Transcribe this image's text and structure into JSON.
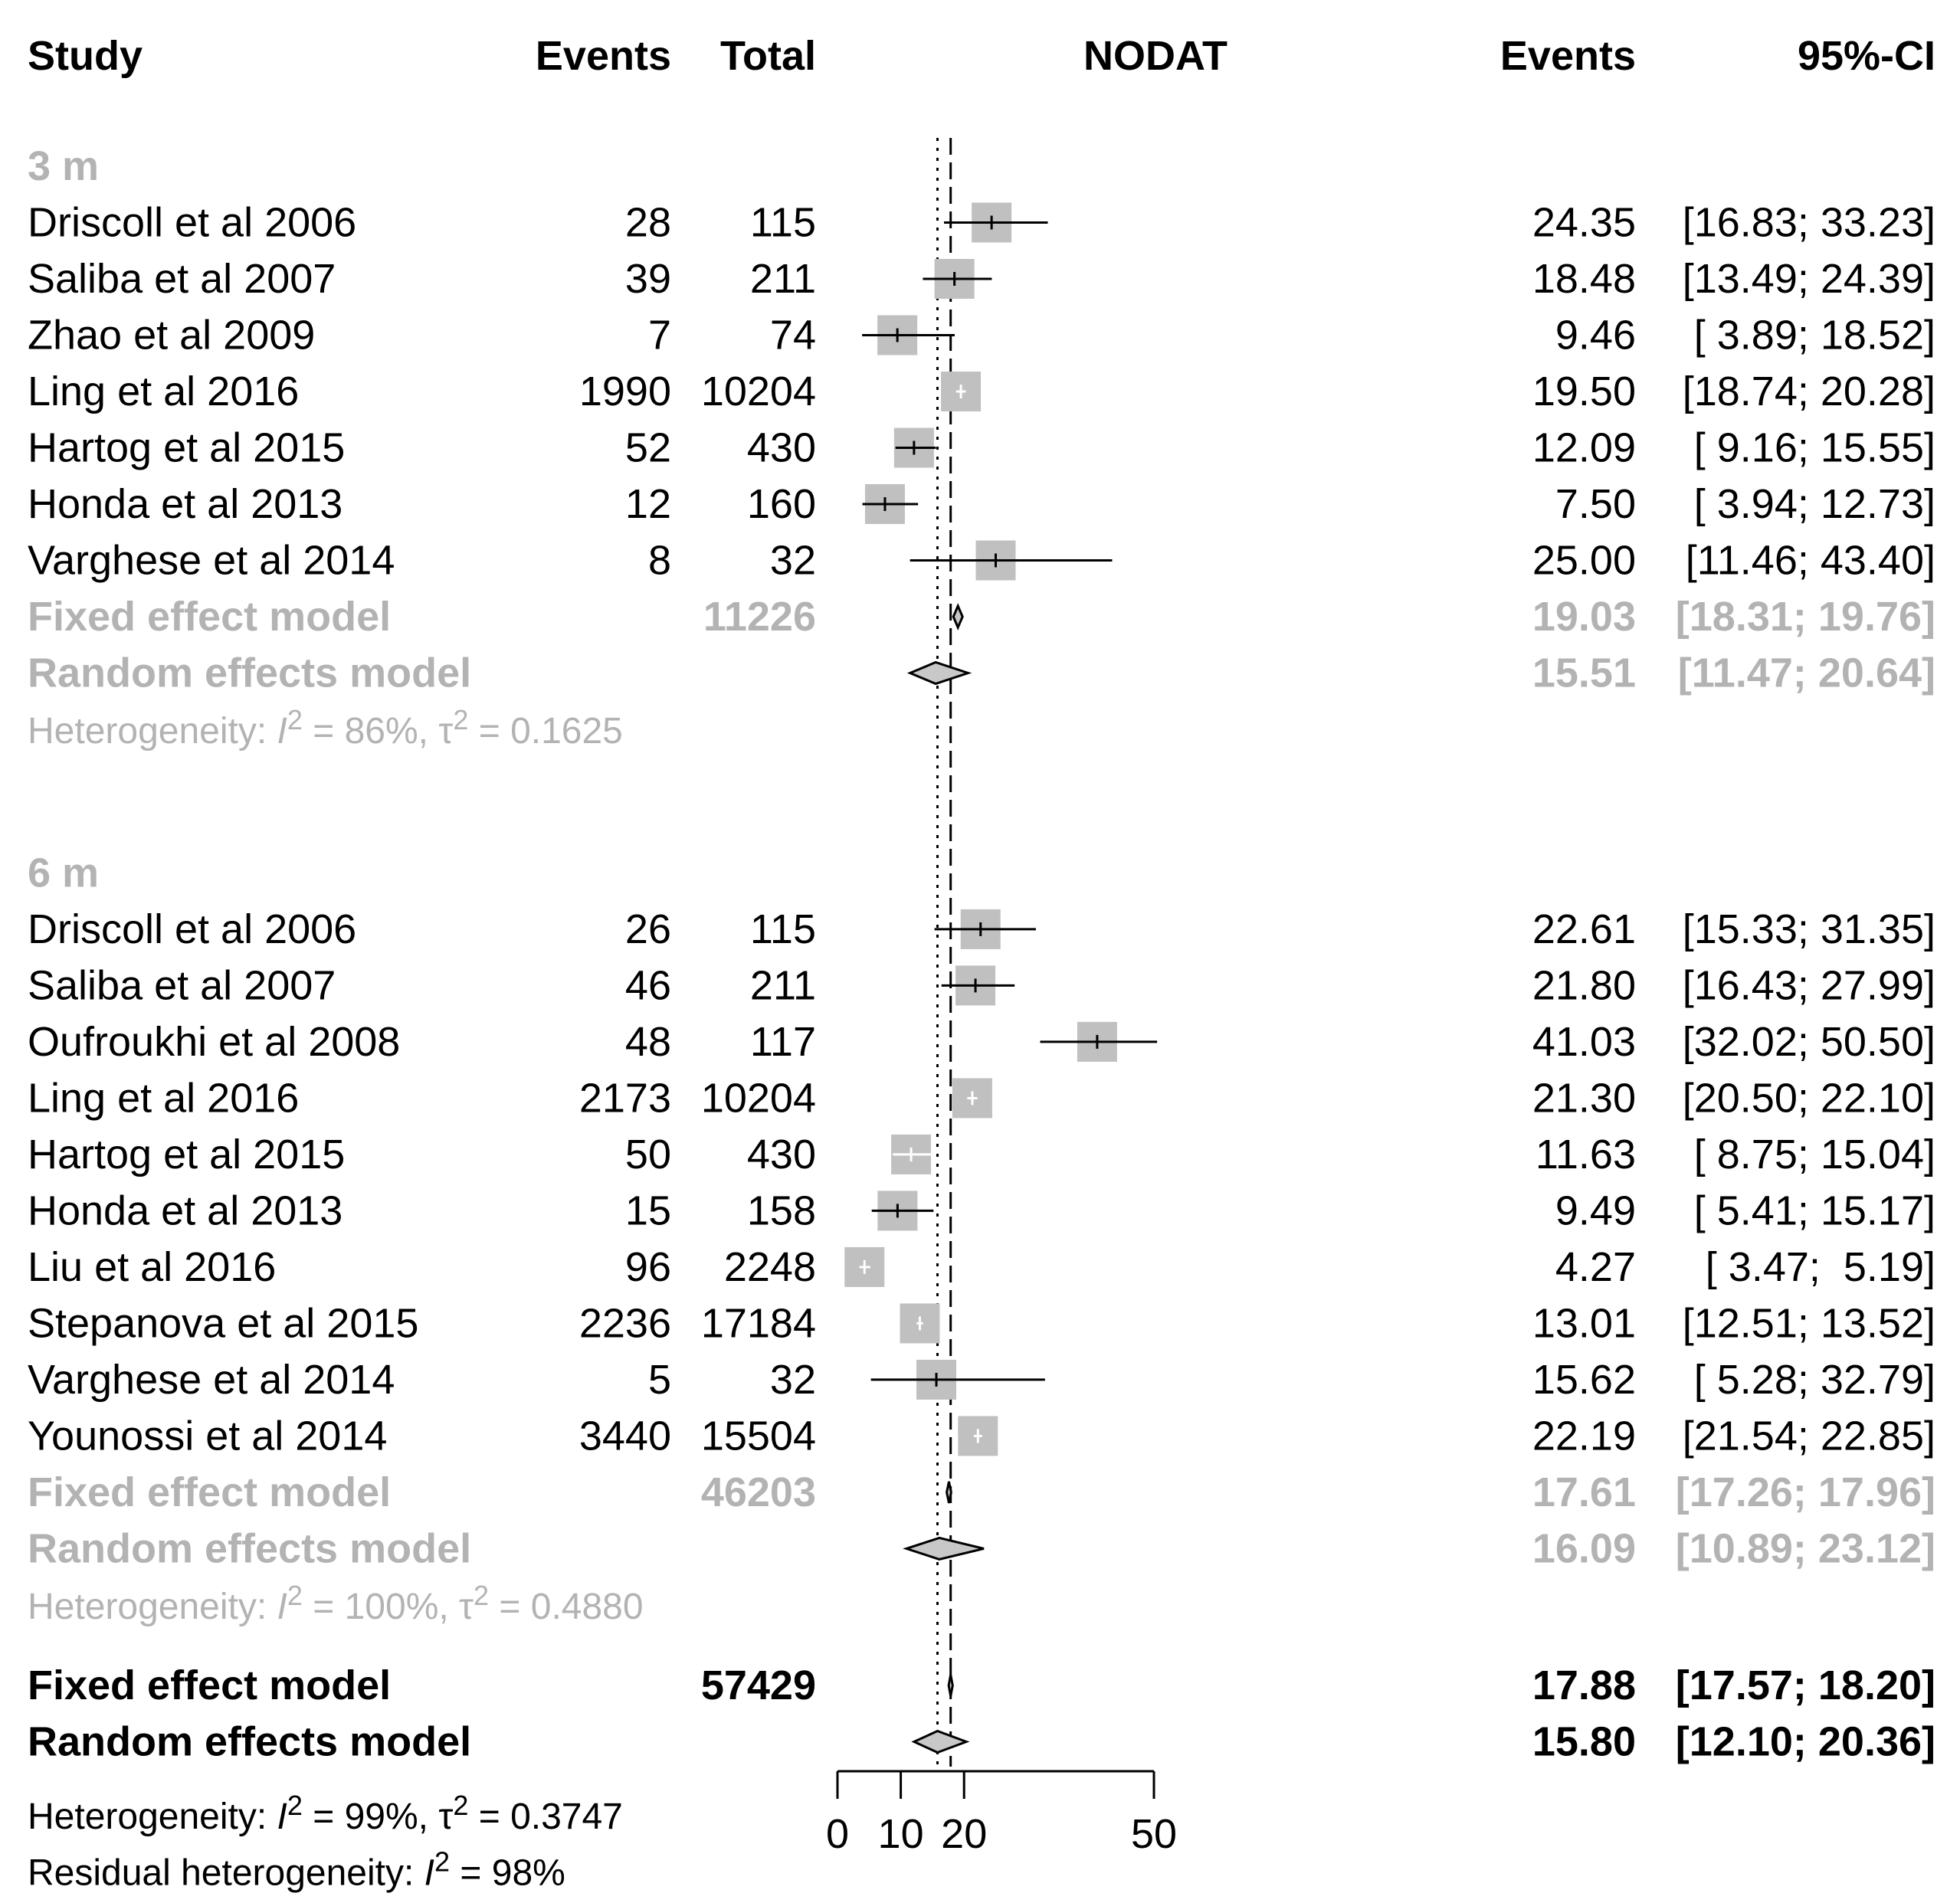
{
  "chart_data": {
    "type": "forest",
    "title": "NODAT",
    "columns": {
      "study": "Study",
      "events": "Events",
      "total": "Total",
      "plot": "NODAT",
      "rate": "Events",
      "ci": "95%-CI"
    },
    "xlim": [
      0,
      50
    ],
    "x_ticks": [
      0,
      10,
      20,
      50
    ],
    "x_tick_labels": [
      "0",
      "10",
      "20",
      "50"
    ],
    "reference_lines": {
      "fixed_overall": 17.88,
      "random_overall": 15.8
    },
    "subgroups": [
      {
        "label": "3 m",
        "studies": [
          {
            "name": "Driscoll et al 2006",
            "events": "28",
            "total": "115",
            "est": 24.35,
            "lo": 16.83,
            "hi": 33.23,
            "weight": 1,
            "rate": "24.35",
            "ci": "[16.83; 33.23]"
          },
          {
            "name": "Saliba et al 2007",
            "events": "39",
            "total": "211",
            "est": 18.48,
            "lo": 13.49,
            "hi": 24.39,
            "weight": 1,
            "rate": "18.48",
            "ci": "[13.49; 24.39]"
          },
          {
            "name": "Zhao et al 2009",
            "events": "7",
            "total": "74",
            "est": 9.46,
            "lo": 3.89,
            "hi": 18.52,
            "weight": 1,
            "rate": "9.46",
            "ci": "[ 3.89; 18.52]"
          },
          {
            "name": "Ling et al 2016",
            "events": "1990",
            "total": "10204",
            "est": 19.5,
            "lo": 18.74,
            "hi": 20.28,
            "weight": 1,
            "rate": "19.50",
            "ci": "[18.74; 20.28]"
          },
          {
            "name": "Hartog et al 2015",
            "events": "52",
            "total": "430",
            "est": 12.09,
            "lo": 9.16,
            "hi": 15.55,
            "weight": 1,
            "rate": "12.09",
            "ci": "[ 9.16; 15.55]"
          },
          {
            "name": "Honda et al 2013",
            "events": "12",
            "total": "160",
            "est": 7.5,
            "lo": 3.94,
            "hi": 12.73,
            "weight": 1,
            "rate": "7.50",
            "ci": "[ 3.94; 12.73]"
          },
          {
            "name": "Varghese et al 2014",
            "events": "8",
            "total": "32",
            "est": 25.0,
            "lo": 11.46,
            "hi": 43.4,
            "weight": 1,
            "rate": "25.00",
            "ci": "[11.46; 43.40]"
          }
        ],
        "fixed": {
          "label": "Fixed effect model",
          "total": "11226",
          "est": 19.03,
          "lo": 18.31,
          "hi": 19.76,
          "rate": "19.03",
          "ci": "[18.31; 19.76]"
        },
        "random": {
          "label": "Random effects model",
          "est": 15.51,
          "lo": 11.47,
          "hi": 20.64,
          "rate": "15.51",
          "ci": "[11.47; 20.64]"
        },
        "heterogeneity": {
          "prefix": "Heterogeneity: ",
          "I": "I",
          "sup": "2",
          "i2_value": " = 86%, ",
          "tau": "τ",
          "tau_value": " = 0.1625"
        }
      },
      {
        "label": "6 m",
        "studies": [
          {
            "name": "Driscoll et al 2006",
            "events": "26",
            "total": "115",
            "est": 22.61,
            "lo": 15.33,
            "hi": 31.35,
            "weight": 1,
            "rate": "22.61",
            "ci": "[15.33; 31.35]"
          },
          {
            "name": "Saliba et al 2007",
            "events": "46",
            "total": "211",
            "est": 21.8,
            "lo": 16.43,
            "hi": 27.99,
            "weight": 1,
            "rate": "21.80",
            "ci": "[16.43; 27.99]"
          },
          {
            "name": "Oufroukhi et al 2008",
            "events": "48",
            "total": "117",
            "est": 41.03,
            "lo": 32.02,
            "hi": 50.5,
            "weight": 1,
            "rate": "41.03",
            "ci": "[32.02; 50.50]"
          },
          {
            "name": "Ling et al 2016",
            "events": "2173",
            "total": "10204",
            "est": 21.3,
            "lo": 20.5,
            "hi": 22.1,
            "weight": 1,
            "rate": "21.30",
            "ci": "[20.50; 22.10]"
          },
          {
            "name": "Hartog et al 2015",
            "events": "50",
            "total": "430",
            "est": 11.63,
            "lo": 8.75,
            "hi": 15.04,
            "weight": 1,
            "rate": "11.63",
            "ci": "[ 8.75; 15.04]"
          },
          {
            "name": "Honda et al 2013",
            "events": "15",
            "total": "158",
            "est": 9.49,
            "lo": 5.41,
            "hi": 15.17,
            "weight": 1,
            "rate": "9.49",
            "ci": "[ 5.41; 15.17]"
          },
          {
            "name": "Liu et al 2016",
            "events": "96",
            "total": "2248",
            "est": 4.27,
            "lo": 3.47,
            "hi": 5.19,
            "weight": 1,
            "rate": "4.27",
            "ci": "[ 3.47;  5.19]"
          },
          {
            "name": "Stepanova et al 2015",
            "events": "2236",
            "total": "17184",
            "est": 13.01,
            "lo": 12.51,
            "hi": 13.52,
            "weight": 1,
            "rate": "13.01",
            "ci": "[12.51; 13.52]"
          },
          {
            "name": "Varghese et al 2014",
            "events": "5",
            "total": "32",
            "est": 15.62,
            "lo": 5.28,
            "hi": 32.79,
            "weight": 1,
            "rate": "15.62",
            "ci": "[ 5.28; 32.79]"
          },
          {
            "name": "Younossi et al 2014",
            "events": "3440",
            "total": "15504",
            "est": 22.19,
            "lo": 21.54,
            "hi": 22.85,
            "weight": 1,
            "rate": "22.19",
            "ci": "[21.54; 22.85]"
          }
        ],
        "fixed": {
          "label": "Fixed effect model",
          "total": "46203",
          "est": 17.61,
          "lo": 17.26,
          "hi": 17.96,
          "rate": "17.61",
          "ci": "[17.26; 17.96]"
        },
        "random": {
          "label": "Random effects model",
          "est": 16.09,
          "lo": 10.89,
          "hi": 23.12,
          "rate": "16.09",
          "ci": "[10.89; 23.12]"
        },
        "heterogeneity": {
          "prefix": "Heterogeneity: ",
          "I": "I",
          "sup": "2",
          "i2_value": " = 100%, ",
          "tau": "τ",
          "tau_value": " = 0.4880"
        }
      }
    ],
    "overall": {
      "fixed": {
        "label": "Fixed effect model",
        "total": "57429",
        "est": 17.88,
        "lo": 17.57,
        "hi": 18.2,
        "rate": "17.88",
        "ci": "[17.57; 18.20]"
      },
      "random": {
        "label": "Random effects model",
        "est": 15.8,
        "lo": 12.1,
        "hi": 20.36,
        "rate": "15.80",
        "ci": "[12.10; 20.36]"
      },
      "heterogeneity": {
        "prefix": "Heterogeneity: ",
        "I": "I",
        "sup": "2",
        "i2_value": " = 99%, ",
        "tau": "τ",
        "tau_value": " = 0.3747"
      },
      "residual": {
        "prefix": "Residual heterogeneity: ",
        "I": "I",
        "sup": "2",
        "i2_value": " = 98%"
      }
    },
    "colors": {
      "text": "#000000",
      "subgroup_text": "#b3b3b3",
      "square": "#c0c0c0",
      "diamond_fill": "#c8c8c8",
      "line": "#000000"
    }
  }
}
